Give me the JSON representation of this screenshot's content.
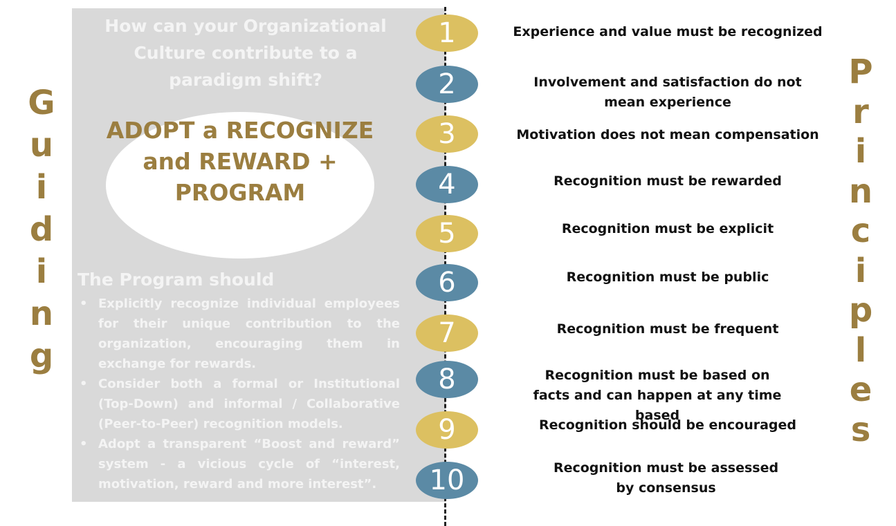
{
  "guiding_word": [
    "G",
    "u",
    "i",
    "d",
    "i",
    "n",
    "g"
  ],
  "principles_word": [
    "P",
    "r",
    "i",
    "n",
    "c",
    "i",
    "p",
    "l",
    "e",
    "s"
  ],
  "left_panel": {
    "question": "How can your Organizational Culture contribute to a paradigm shift?",
    "ellipse_text": "ADOPT a RECOGNIZE and REWARD + PROGRAM",
    "program_title": "The Program should",
    "program_points": [
      "Explicitly recognize individual employees for their unique contribution to the organization, encouraging them in exchange for rewards.",
      "Consider both a formal or Institutional (Top-Down) and informal / Collaborative (Peer-to-Peer) recognition models.",
      "Adopt a transparent “Boost and reward” system - a vicious cycle of “interest, motivation, reward and more interest”."
    ]
  },
  "principles": [
    {
      "number": "1",
      "text": "Experience and value must be recognized"
    },
    {
      "number": "2",
      "text": "Involvement and satisfaction do not mean experience"
    },
    {
      "number": "3",
      "text": "Motivation does not mean compensation"
    },
    {
      "number": "4",
      "text": "Recognition must be rewarded"
    },
    {
      "number": "5",
      "text": "Recognition must be explicit"
    },
    {
      "number": "6",
      "text": "Recognition must be public"
    },
    {
      "number": "7",
      "text": "Recognition must be frequent"
    },
    {
      "number": "8",
      "text": "Recognition must be based on facts and can happen at any time based"
    },
    {
      "number": "9",
      "text": "Recognition should be encouraged"
    },
    {
      "number": "10",
      "text": "Recognition must be assessed by consensus"
    }
  ],
  "colors": {
    "gold_circle": "#dcc061",
    "blue_circle": "#5b8aa5",
    "brown_text": "#9b7e40",
    "panel_gray": "#d9d9d9"
  }
}
